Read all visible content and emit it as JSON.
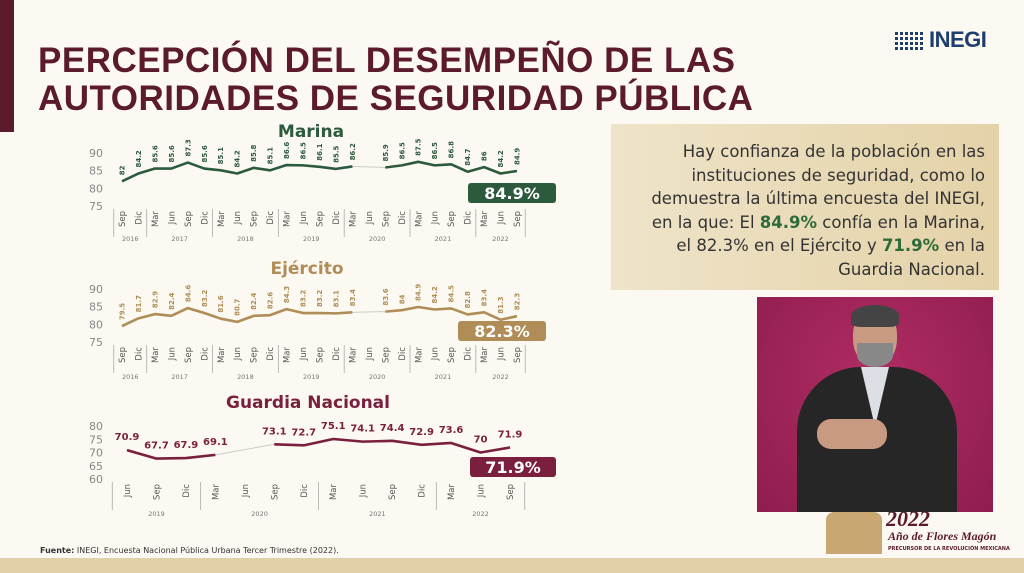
{
  "header": {
    "title_line1": "PERCEPCIÓN DEL DESEMPEÑO DE LAS",
    "title_line2": "AUTORIDADES DE SEGURIDAD PÚBLICA",
    "logo": "INEGI"
  },
  "message": {
    "p1": "Hay confianza de la población en las instituciones de seguridad, como lo demuestra la última encuesta del INEGI, en la que:  El ",
    "v1": "84.9%",
    "p2": " confía en la Marina, el ",
    "v2": "82.3%",
    "p3": " en el Ejército y ",
    "v3": "71.9%",
    "p4": " en la  Guardia Nacional."
  },
  "anniversary": {
    "year": "2022",
    "text": "Año de Flores Magón",
    "subtitle": "PRECURSOR DE LA REVOLUCIÓN MEXICANA"
  },
  "source": {
    "label": "Fuente:",
    "text": " INEGI, Encuesta Nacional Pública Urbana Tercer Trimestre  (2022)."
  },
  "colors": {
    "marina": "#2c5a3c",
    "ejercito": "#b08d57",
    "guardia": "#7a1f3d",
    "title": "#5c1b2c"
  },
  "chart_data": [
    {
      "type": "line",
      "title": "Marina",
      "ylim": [
        75,
        90
      ],
      "yticks": [
        90,
        85,
        80,
        75
      ],
      "badge": "84.9%",
      "x": [
        "Sep",
        "Dic",
        "Mar",
        "Jun",
        "Sep",
        "Dic",
        "Mar",
        "Jun",
        "Sep",
        "Dic",
        "Mar",
        "Jun",
        "Sep",
        "Dic",
        "Mar",
        "Jun",
        "Sep",
        "Dic",
        "Mar",
        "Jun",
        "Sep",
        "Dic",
        "Mar",
        "Jun",
        "Sep"
      ],
      "years": [
        {
          "label": "2016",
          "n": 2
        },
        {
          "label": "2017",
          "n": 4
        },
        {
          "label": "2018",
          "n": 4
        },
        {
          "label": "2019",
          "n": 4
        },
        {
          "label": "2020",
          "n": 4
        },
        {
          "label": "2021",
          "n": 4
        },
        {
          "label": "2022",
          "n": 3
        }
      ],
      "values": [
        82,
        84.2,
        85.6,
        85.6,
        87.3,
        85.6,
        85.1,
        84.2,
        85.8,
        85.1,
        86.6,
        86.5,
        86.1,
        85.5,
        86.2,
        null,
        85.9,
        86.5,
        87.5,
        86.5,
        86.8,
        84.7,
        86,
        84.2,
        84.9
      ],
      "labels": [
        "82",
        "84.2",
        "85.6",
        "85.6",
        "87.3",
        "85.6",
        "85.1",
        "84.2",
        "85.8",
        "85.1",
        "86.6",
        "86.5",
        "86.1",
        "85.5",
        "86.2",
        "",
        "85.9",
        "86.5",
        "87.5",
        "86.5",
        "86.8",
        "84.7",
        "86",
        "84.2",
        "84.9"
      ]
    },
    {
      "type": "line",
      "title": "Ejército",
      "ylim": [
        75,
        90
      ],
      "yticks": [
        90,
        85,
        80,
        75
      ],
      "badge": "82.3%",
      "x": [
        "Sep",
        "Dic",
        "Mar",
        "Jun",
        "Sep",
        "Dic",
        "Mar",
        "Jun",
        "Sep",
        "Dic",
        "Mar",
        "Jun",
        "Sep",
        "Dic",
        "Mar",
        "Jun",
        "Sep",
        "Dic",
        "Mar",
        "Jun",
        "Sep",
        "Dic",
        "Mar",
        "Jun",
        "Sep"
      ],
      "years": [
        {
          "label": "2016",
          "n": 2
        },
        {
          "label": "2017",
          "n": 4
        },
        {
          "label": "2018",
          "n": 4
        },
        {
          "label": "2019",
          "n": 4
        },
        {
          "label": "2020",
          "n": 4
        },
        {
          "label": "2021",
          "n": 4
        },
        {
          "label": "2022",
          "n": 3
        }
      ],
      "values": [
        79.5,
        81.7,
        82.9,
        82.4,
        84.6,
        83.2,
        81.6,
        80.7,
        82.4,
        82.6,
        84.3,
        83.2,
        83.2,
        83.1,
        83.4,
        null,
        83.6,
        84,
        84.9,
        84.2,
        84.5,
        82.8,
        83.4,
        81.3,
        82.3
      ],
      "labels": [
        "79.5",
        "81.7",
        "82.9",
        "82.4",
        "84.6",
        "83.2",
        "81.6",
        "80.7",
        "82.4",
        "82.6",
        "84.3",
        "83.2",
        "83.2",
        "83.1",
        "83.4",
        "",
        "83.6",
        "84",
        "84.9",
        "84.2",
        "84.5",
        "82.8",
        "83.4",
        "81.3",
        "82.3"
      ]
    },
    {
      "type": "line",
      "title": "Guardia Nacional",
      "ylim": [
        60,
        80
      ],
      "yticks": [
        80,
        75,
        70,
        65,
        60
      ],
      "badge": "71.9%",
      "x": [
        "Jun",
        "Sep",
        "Dic",
        "Mar",
        "Jun",
        "Sep",
        "Dic",
        "Mar",
        "Jun",
        "Sep",
        "Dic",
        "Mar",
        "Jun",
        "Sep"
      ],
      "years": [
        {
          "label": "2019",
          "n": 3
        },
        {
          "label": "2020",
          "n": 4
        },
        {
          "label": "2021",
          "n": 4
        },
        {
          "label": "2022",
          "n": 3
        }
      ],
      "values": [
        70.9,
        67.7,
        67.9,
        69.1,
        null,
        73.1,
        72.7,
        75.1,
        74.1,
        74.4,
        72.9,
        73.6,
        70,
        71.9
      ],
      "labels": [
        "70.9",
        "67.7",
        "67.9",
        "69.1",
        "",
        "73.1",
        "72.7",
        "75.1",
        "74.1",
        "74.4",
        "72.9",
        "73.6",
        "70",
        "71.9"
      ]
    }
  ]
}
